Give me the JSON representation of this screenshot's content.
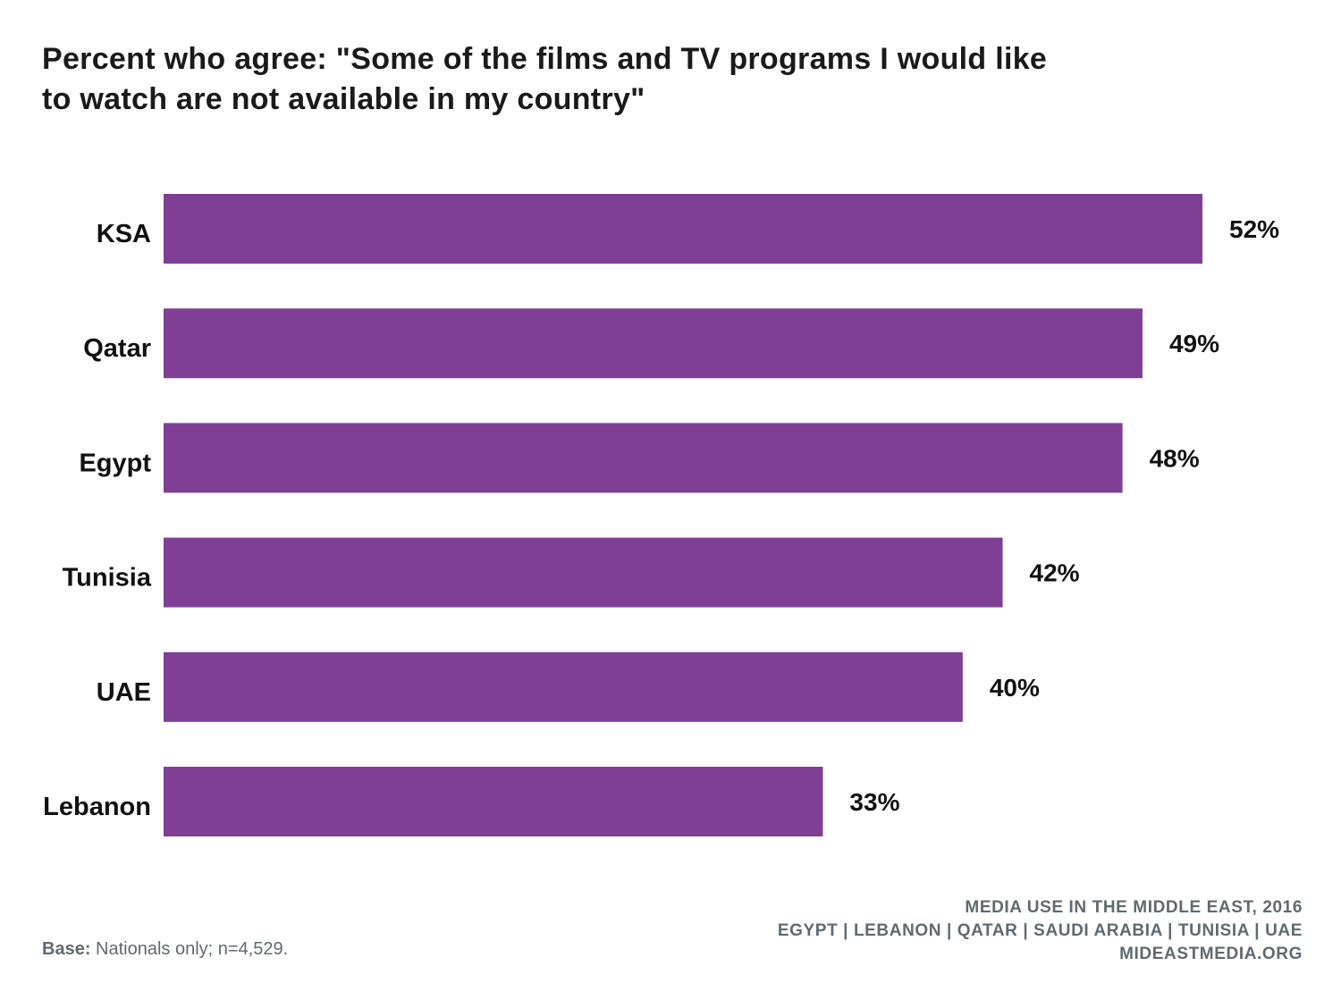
{
  "title": {
    "line1": "Percent who agree: \"Some of the films and TV programs I would like",
    "line2": "to watch are not available in my country\""
  },
  "colors": {
    "bar": "#7f3f95",
    "label": "#111111",
    "footer": "#5f6a70"
  },
  "chart_data": {
    "type": "bar",
    "orientation": "horizontal",
    "title": "Percent who agree: \"Some of the films and TV programs I would like to watch are not available in my country\"",
    "categories": [
      "KSA",
      "Qatar",
      "Egypt",
      "Tunisia",
      "UAE",
      "Lebanon"
    ],
    "values": [
      52,
      49,
      48,
      42,
      40,
      33
    ],
    "value_labels": [
      "52%",
      "49%",
      "48%",
      "42%",
      "40%",
      "33%"
    ],
    "unit": "%",
    "xlim": [
      0,
      52
    ],
    "grid": false,
    "legend": "none"
  },
  "footer": {
    "source_lines": [
      "MEDIA USE IN THE MIDDLE EAST, 2016",
      "EGYPT | LEBANON | QATAR | SAUDI ARABIA | TUNISIA | UAE",
      "MIDEASTMEDIA.ORG"
    ],
    "base_label": "Base:",
    "base_text": "Nationals only; n=4,529."
  }
}
